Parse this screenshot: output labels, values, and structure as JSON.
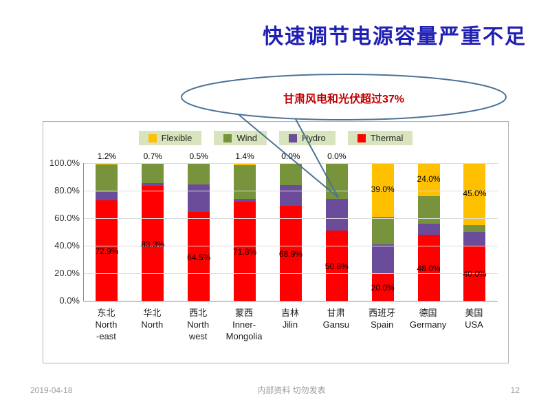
{
  "slide": {
    "title": "快速调节电源容量严重不足",
    "callout": "甘肃风电和光伏超过37%",
    "footer": {
      "date": "2019-04-18",
      "center": "内部资料 切勿发表",
      "page": "12"
    }
  },
  "colors": {
    "thermal": "#FF0000",
    "hydro": "#6B4C9A",
    "wind": "#77933C",
    "flexible": "#FFC000",
    "title": "#1F1FB4",
    "callout_text": "#C00000",
    "callout_border": "#4A7296",
    "legend_bg": "#D7E4BD"
  },
  "chart_data": {
    "type": "bar",
    "stacked": true,
    "title": "",
    "xlabel": "",
    "ylabel": "",
    "ylim": [
      0,
      100
    ],
    "grid": true,
    "legend_position": "top",
    "yticks": [
      "100.0%",
      "80.0%",
      "60.0%",
      "40.0%",
      "20.0%",
      "0.0%"
    ],
    "legend": [
      {
        "key": "flexible",
        "label": "Flexible"
      },
      {
        "key": "wind",
        "label": "Wind"
      },
      {
        "key": "hydro",
        "label": "Hydro"
      },
      {
        "key": "thermal",
        "label": "Thermal"
      }
    ],
    "categories": [
      {
        "zh": "东北",
        "en": "North\n-east"
      },
      {
        "zh": "华北",
        "en": "North"
      },
      {
        "zh": "西北",
        "en": "North\nwest"
      },
      {
        "zh": "蒙西",
        "en": "Inner-\nMongolia"
      },
      {
        "zh": "吉林",
        "en": "Jilin"
      },
      {
        "zh": "甘肃",
        "en": "Gansu"
      },
      {
        "zh": "西班牙",
        "en": "Spain"
      },
      {
        "zh": "德国",
        "en": "Germany"
      },
      {
        "zh": "美国",
        "en": "USA"
      }
    ],
    "series": [
      {
        "key": "thermal",
        "name": "Thermal",
        "values": [
          72.9,
          83.3,
          64.5,
          71.8,
          68.9,
          50.8,
          20.0,
          48.0,
          40.0
        ]
      },
      {
        "key": "hydro",
        "name": "Hydro",
        "values": [
          6.0,
          2.0,
          20.0,
          2.0,
          15.0,
          23.2,
          21.0,
          8.0,
          10.0
        ]
      },
      {
        "key": "wind",
        "name": "Wind",
        "values": [
          19.9,
          14.0,
          15.0,
          24.8,
          16.1,
          26.0,
          20.0,
          20.0,
          5.0
        ]
      },
      {
        "key": "flexible",
        "name": "Flexible",
        "values": [
          1.2,
          0.7,
          0.5,
          1.4,
          0.0,
          0.0,
          39.0,
          24.0,
          45.0
        ]
      }
    ],
    "thermal_labels": [
      "72.9%",
      "83.3%",
      "64.5%",
      "71.8%",
      "68.9%",
      "50.8%",
      "20.0%",
      "48.0%",
      "40.0%"
    ],
    "flexible_labels": [
      "1.2%",
      "0.7%",
      "0.5%",
      "1.4%",
      "0.0%",
      "0.0%",
      "39.0%",
      "24.0%",
      "45.0%"
    ]
  }
}
